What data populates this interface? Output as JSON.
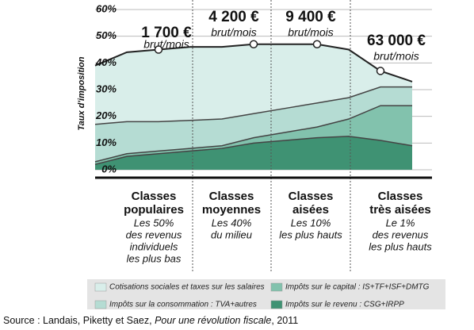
{
  "chart_data": {
    "type": "stacked_area",
    "y_label": "Taux d'imposition",
    "categories": [
      null,
      null,
      null,
      null,
      null,
      null,
      null,
      null,
      null,
      null,
      null
    ],
    "series": [
      {
        "name": "Impôts sur le revenu : CSG+IRPP",
        "color": "#3f9273",
        "values": [
          2,
          5,
          6,
          7,
          8,
          10,
          11,
          12,
          12.5,
          11,
          9
        ]
      },
      {
        "name": "Impôts sur le capital : IS+TF+ISF+DMTG",
        "color": "#82c2ad",
        "values": [
          1,
          1,
          1,
          1,
          1,
          2,
          3,
          4,
          6.5,
          13,
          15
        ]
      },
      {
        "name": "Impôts sur la consommation : TVA+autres",
        "color": "#b5dcd3",
        "values": [
          14,
          12,
          11,
          10.5,
          10,
          9,
          9,
          9,
          8,
          7,
          7
        ]
      },
      {
        "name": "Cotisations sociales et taxes sur les salaires",
        "color": "#d9eeea",
        "values": [
          22,
          26,
          27,
          27.5,
          27,
          26,
          24,
          22,
          18,
          6,
          2
        ]
      }
    ],
    "ylim": [
      0,
      60
    ],
    "yticks": [
      {
        "value": 0,
        "label": "0%"
      },
      {
        "value": 10,
        "label": "10%"
      },
      {
        "value": 20,
        "label": "20%"
      },
      {
        "value": 30,
        "label": "30%"
      },
      {
        "value": 40,
        "label": "40%"
      },
      {
        "value": 50,
        "label": "50%"
      },
      {
        "value": 60,
        "label": "60%"
      }
    ],
    "grid": true,
    "annotations": [
      {
        "label": "1 700 €",
        "sub": "brut/mois"
      },
      {
        "label": "4 200 €",
        "sub": "brut/mois"
      },
      {
        "label": "9 400 €",
        "sub": "brut/mois"
      },
      {
        "label": "63 000 €",
        "sub": "brut/mois"
      }
    ],
    "groups": [
      {
        "name": [
          "Classes",
          "populaires"
        ],
        "desc": [
          "Les 50%",
          "des revenus",
          "individuels",
          "les plus bas"
        ]
      },
      {
        "name": [
          "Classes",
          "moyennes"
        ],
        "desc": [
          "Les 40%",
          "du milieu"
        ]
      },
      {
        "name": [
          "Classes",
          "aisées"
        ],
        "desc": [
          "Les 10%",
          "les plus hauts"
        ]
      },
      {
        "name": [
          "Classes",
          "très aisées"
        ],
        "desc": [
          "Le 1%",
          "des revenus",
          "les plus hauts"
        ]
      }
    ],
    "source": {
      "prefix": "Source : Landais, Piketty et Saez, ",
      "title": "Pour une révolution fiscale",
      "suffix": ", 2011"
    }
  }
}
